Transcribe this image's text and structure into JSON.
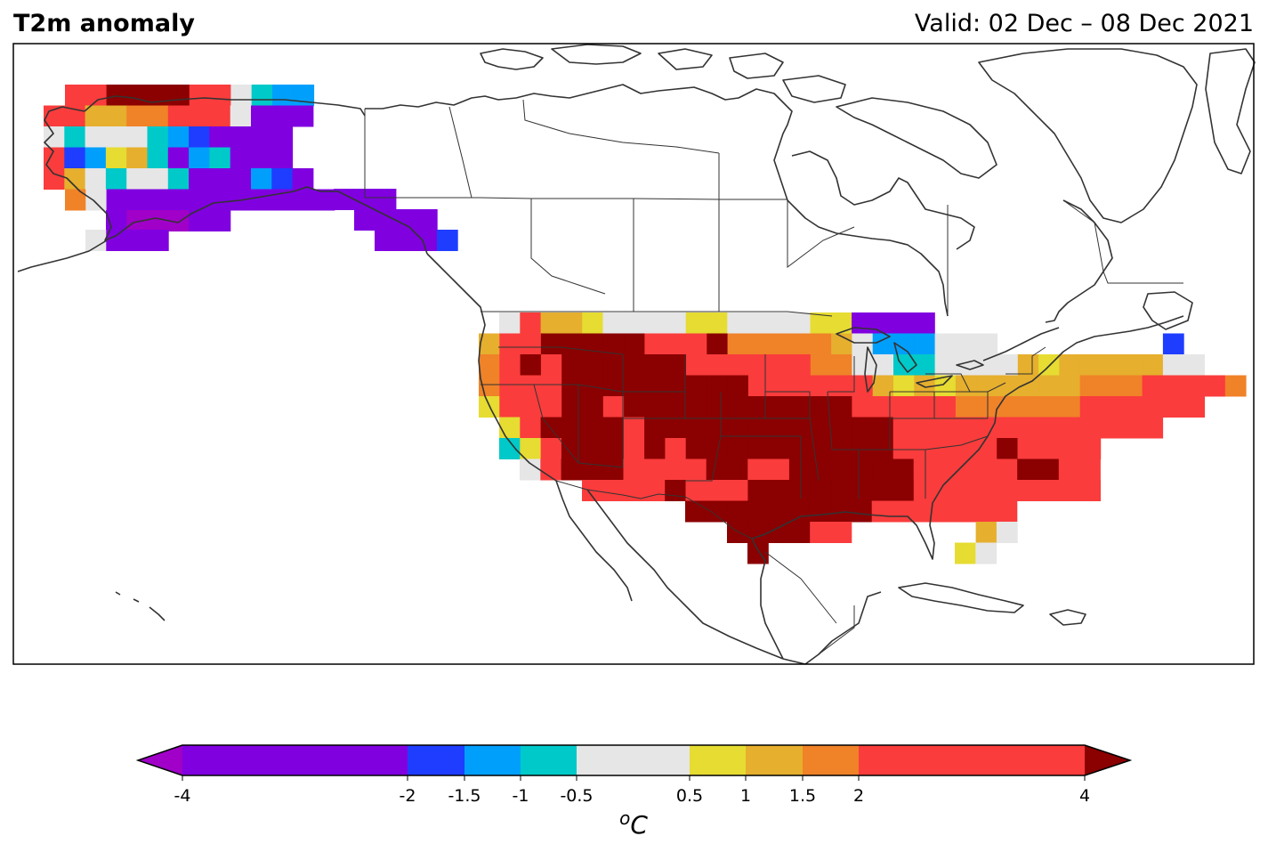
{
  "header": {
    "title": "T2m anomaly",
    "valid": "Valid: 02 Dec – 08 Dec 2021"
  },
  "colorbar": {
    "bins": [
      {
        "from": -4,
        "to": -2,
        "color": "#8000e0"
      },
      {
        "from": -2,
        "to": -1.5,
        "color": "#1f3dff"
      },
      {
        "from": -1.5,
        "to": -1,
        "color": "#009ffc"
      },
      {
        "from": -1,
        "to": -0.5,
        "color": "#00c9c9"
      },
      {
        "from": -0.5,
        "to": 0.5,
        "color": "#e6e6e6"
      },
      {
        "from": 0.5,
        "to": 1,
        "color": "#e6dc32"
      },
      {
        "from": 1,
        "to": 1.5,
        "color": "#e6af2d"
      },
      {
        "from": 1.5,
        "to": 2,
        "color": "#f08228"
      },
      {
        "from": 2,
        "to": 4,
        "color": "#fa3c3c"
      }
    ],
    "under_color": "#a000c8",
    "over_color": "#8b0000",
    "tick_labels": [
      "-4",
      "-2",
      "-1.5",
      "-1",
      "-0.5",
      "0.5",
      "1",
      "1.5",
      "2",
      "4"
    ],
    "unit_prefix": "o",
    "unit_main": "C"
  },
  "map": {
    "projection": "North America, plate carree",
    "coastline_color": "#333333",
    "grid": {
      "rows": [
        [
          "W",
          "Wc",
          "DDD",
          "W"
        ],
        [
          "W",
          "rrr",
          "Rr",
          "o",
          "Rr",
          "W"
        ]
      ]
    }
  }
}
